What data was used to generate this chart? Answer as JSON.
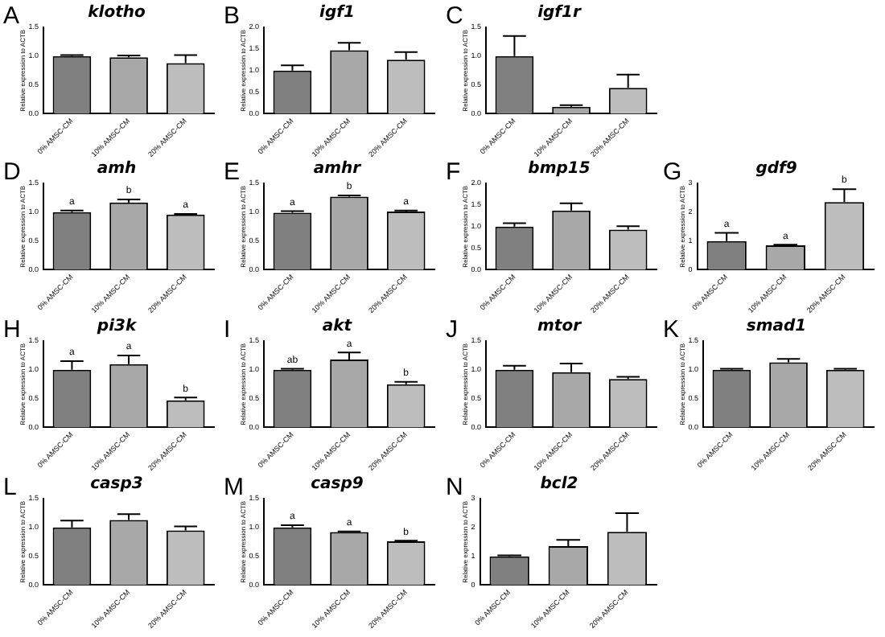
{
  "chart_data": [
    {
      "type": "bar",
      "title": "klotho",
      "annotations": [
        "A"
      ],
      "ylabel": "Relative expression to ACTB",
      "categories": [
        "0% AMSC-CM",
        "10% AMSC-CM",
        "20% AMSC-CM"
      ],
      "values": [
        1.0,
        0.98,
        0.88
      ],
      "errors": [
        0.02,
        0.03,
        0.14
      ],
      "colors": [
        "#808080",
        "#a8a8a8",
        "#bdbdbd"
      ],
      "ylim": [
        0,
        1.5
      ],
      "yticks": [
        {
          "value": 0,
          "label": "0.0"
        },
        {
          "value": 0.5,
          "label": "0.5"
        },
        {
          "value": 1,
          "label": "1.0"
        },
        {
          "value": 1.5,
          "label": "1.5"
        }
      ],
      "grid": false
    },
    {
      "type": "bar",
      "title": "igf1",
      "annotations": [
        "B"
      ],
      "ylabel": "Relative expression to ACTB",
      "categories": [
        "0% AMSC-CM",
        "10% AMSC-CM",
        "20% AMSC-CM"
      ],
      "values": [
        1.0,
        1.47,
        1.25
      ],
      "errors": [
        0.12,
        0.17,
        0.18
      ],
      "colors": [
        "#808080",
        "#a8a8a8",
        "#bdbdbd"
      ],
      "ylim": [
        0,
        2
      ],
      "yticks": [
        {
          "value": 0,
          "label": "0.0"
        },
        {
          "value": 0.5,
          "label": "0.5"
        },
        {
          "value": 1,
          "label": "1.0"
        },
        {
          "value": 1.5,
          "label": "1.5"
        },
        {
          "value": 2,
          "label": "2.0"
        }
      ],
      "grid": false
    },
    {
      "type": "bar",
      "title": "igf1r",
      "annotations": [
        "C"
      ],
      "ylabel": "Relative expression to ACTB",
      "categories": [
        "0% AMSC-CM",
        "10% AMSC-CM",
        "20% AMSC-CM"
      ],
      "values": [
        1.0,
        0.12,
        0.45
      ],
      "errors": [
        0.35,
        0.03,
        0.23
      ],
      "colors": [
        "#808080",
        "#a8a8a8",
        "#bdbdbd"
      ],
      "ylim": [
        0,
        1.5
      ],
      "yticks": [
        {
          "value": 0,
          "label": "0.0"
        },
        {
          "value": 0.5,
          "label": "0.5"
        },
        {
          "value": 1,
          "label": "1.0"
        },
        {
          "value": 1.5,
          "label": "1.5"
        }
      ],
      "grid": false
    },
    {
      "type": "bar",
      "title": "amh",
      "annotations": [
        "D",
        {
          "text": "a",
          "x": "0% AMSC-CM",
          "y": 1.03
        },
        {
          "text": "b",
          "x": "10% AMSC-CM",
          "y": 1.22
        },
        {
          "text": "a",
          "x": "20% AMSC-CM",
          "y": 0.97
        }
      ],
      "ylabel": "Relative expression to ACTB",
      "categories": [
        "0% AMSC-CM",
        "10% AMSC-CM",
        "20% AMSC-CM"
      ],
      "values": [
        1.0,
        1.17,
        0.96
      ],
      "errors": [
        0.03,
        0.05,
        0.01
      ],
      "colors": [
        "#808080",
        "#a8a8a8",
        "#bdbdbd"
      ],
      "ylim": [
        0,
        1.5
      ],
      "yticks": [
        {
          "value": 0,
          "label": "0.0"
        },
        {
          "value": 0.5,
          "label": "0.5"
        },
        {
          "value": 1,
          "label": "1.0"
        },
        {
          "value": 1.5,
          "label": "1.5"
        }
      ],
      "grid": false
    },
    {
      "type": "bar",
      "title": "amhr",
      "annotations": [
        "E",
        {
          "text": "a",
          "x": "0% AMSC-CM",
          "y": 1.02
        },
        {
          "text": "b",
          "x": "10% AMSC-CM",
          "y": 1.29
        },
        {
          "text": "a",
          "x": "20% AMSC-CM",
          "y": 1.03
        }
      ],
      "ylabel": "Relative expression to ACTB",
      "categories": [
        "0% AMSC-CM",
        "10% AMSC-CM",
        "20% AMSC-CM"
      ],
      "values": [
        0.99,
        1.27,
        1.01
      ],
      "errors": [
        0.03,
        0.02,
        0.02
      ],
      "colors": [
        "#808080",
        "#a8a8a8",
        "#bdbdbd"
      ],
      "ylim": [
        0,
        1.5
      ],
      "yticks": [
        {
          "value": 0,
          "label": "0.0"
        },
        {
          "value": 0.5,
          "label": "0.5"
        },
        {
          "value": 1,
          "label": "1.0"
        },
        {
          "value": 1.5,
          "label": "1.5"
        }
      ],
      "grid": false
    },
    {
      "type": "bar",
      "title": "bmp15",
      "annotations": [
        "F"
      ],
      "ylabel": "Relative expression to ACTB",
      "categories": [
        "0% AMSC-CM",
        "10% AMSC-CM",
        "20% AMSC-CM"
      ],
      "values": [
        1.0,
        1.37,
        0.93
      ],
      "errors": [
        0.08,
        0.17,
        0.08
      ],
      "colors": [
        "#808080",
        "#a8a8a8",
        "#bdbdbd"
      ],
      "ylim": [
        0,
        2
      ],
      "yticks": [
        {
          "value": 0,
          "label": "0.0"
        },
        {
          "value": 0.5,
          "label": "0.5"
        },
        {
          "value": 1,
          "label": "1.0"
        },
        {
          "value": 1.5,
          "label": "1.5"
        },
        {
          "value": 2,
          "label": "2.0"
        }
      ],
      "grid": false
    },
    {
      "type": "bar",
      "title": "gdf9",
      "annotations": [
        "G",
        {
          "text": "a",
          "x": "0% AMSC-CM",
          "y": 1.28
        },
        {
          "text": "a",
          "x": "10% AMSC-CM",
          "y": 0.87
        },
        {
          "text": "b",
          "x": "20% AMSC-CM",
          "y": 2.8
        }
      ],
      "ylabel": "Relative expression to ACTB",
      "categories": [
        "0% AMSC-CM",
        "10% AMSC-CM",
        "20% AMSC-CM"
      ],
      "values": [
        1.0,
        0.85,
        2.35
      ],
      "errors": [
        0.28,
        0.02,
        0.45
      ],
      "colors": [
        "#808080",
        "#a8a8a8",
        "#bdbdbd"
      ],
      "ylim": [
        0,
        3
      ],
      "yticks": [
        0,
        1,
        2,
        3
      ],
      "grid": false
    },
    {
      "type": "bar",
      "title": "pi3k",
      "annotations": [
        "H",
        {
          "text": "a",
          "x": "0% AMSC-CM",
          "y": 1.15
        },
        {
          "text": "a",
          "x": "10% AMSC-CM",
          "y": 1.25
        },
        {
          "text": "b",
          "x": "20% AMSC-CM",
          "y": 0.52
        }
      ],
      "ylabel": "Relative expression to ACTB",
      "categories": [
        "0% AMSC-CM",
        "10% AMSC-CM",
        "20% AMSC-CM"
      ],
      "values": [
        1.0,
        1.1,
        0.47
      ],
      "errors": [
        0.15,
        0.15,
        0.05
      ],
      "colors": [
        "#808080",
        "#a8a8a8",
        "#bdbdbd"
      ],
      "ylim": [
        0,
        1.5
      ],
      "yticks": [
        {
          "value": 0,
          "label": "0.0"
        },
        {
          "value": 0.5,
          "label": "0.5"
        },
        {
          "value": 1,
          "label": "1.0"
        },
        {
          "value": 1.5,
          "label": "1.5"
        }
      ],
      "grid": false
    },
    {
      "type": "bar",
      "title": "akt",
      "annotations": [
        "I",
        {
          "text": "ab",
          "x": "0% AMSC-CM",
          "y": 1.02
        },
        {
          "text": "a",
          "x": "10% AMSC-CM",
          "y": 1.3
        },
        {
          "text": "b",
          "x": "20% AMSC-CM",
          "y": 0.79
        }
      ],
      "ylabel": "Relative expression to ACTB",
      "categories": [
        "0% AMSC-CM",
        "10% AMSC-CM",
        "20% AMSC-CM"
      ],
      "values": [
        1.0,
        1.18,
        0.75
      ],
      "errors": [
        0.02,
        0.12,
        0.04
      ],
      "colors": [
        "#808080",
        "#a8a8a8",
        "#bdbdbd"
      ],
      "ylim": [
        0,
        1.5
      ],
      "yticks": [
        {
          "value": 0,
          "label": "0.0"
        },
        {
          "value": 0.5,
          "label": "0.5"
        },
        {
          "value": 1,
          "label": "1.0"
        },
        {
          "value": 1.5,
          "label": "1.5"
        }
      ],
      "grid": false
    },
    {
      "type": "bar",
      "title": "mtor",
      "annotations": [
        "J"
      ],
      "ylabel": "Relative expression to ACTB",
      "categories": [
        "0% AMSC-CM",
        "10% AMSC-CM",
        "20% AMSC-CM"
      ],
      "values": [
        1.0,
        0.96,
        0.84
      ],
      "errors": [
        0.07,
        0.15,
        0.04
      ],
      "colors": [
        "#808080",
        "#a8a8a8",
        "#bdbdbd"
      ],
      "ylim": [
        0,
        1.5
      ],
      "yticks": [
        {
          "value": 0,
          "label": "0.0"
        },
        {
          "value": 0.5,
          "label": "0.5"
        },
        {
          "value": 1,
          "label": "1.0"
        },
        {
          "value": 1.5,
          "label": "1.5"
        }
      ],
      "grid": false
    },
    {
      "type": "bar",
      "title": "smad1",
      "annotations": [
        "K"
      ],
      "ylabel": "Relative expression to ACTB",
      "categories": [
        "0% AMSC-CM",
        "10% AMSC-CM",
        "20% AMSC-CM"
      ],
      "values": [
        1.0,
        1.13,
        1.0
      ],
      "errors": [
        0.02,
        0.06,
        0.02
      ],
      "colors": [
        "#808080",
        "#a8a8a8",
        "#bdbdbd"
      ],
      "ylim": [
        0,
        1.5
      ],
      "yticks": [
        {
          "value": 0,
          "label": "0.0"
        },
        {
          "value": 0.5,
          "label": "0.5"
        },
        {
          "value": 1,
          "label": "1.0"
        },
        {
          "value": 1.5,
          "label": "1.5"
        }
      ],
      "grid": false
    },
    {
      "type": "bar",
      "title": "casp3",
      "annotations": [
        "L"
      ],
      "ylabel": "Relative expression to ACTB",
      "categories": [
        "0% AMSC-CM",
        "10% AMSC-CM",
        "20% AMSC-CM"
      ],
      "values": [
        1.0,
        1.13,
        0.95
      ],
      "errors": [
        0.12,
        0.1,
        0.07
      ],
      "colors": [
        "#808080",
        "#a8a8a8",
        "#bdbdbd"
      ],
      "ylim": [
        0,
        1.5
      ],
      "yticks": [
        {
          "value": 0,
          "label": "0.0"
        },
        {
          "value": 0.5,
          "label": "0.5"
        },
        {
          "value": 1,
          "label": "1.0"
        },
        {
          "value": 1.5,
          "label": "1.5"
        }
      ],
      "grid": false
    },
    {
      "type": "bar",
      "title": "casp9",
      "annotations": [
        "M",
        {
          "text": "a",
          "x": "0% AMSC-CM",
          "y": 1.04
        },
        {
          "text": "a",
          "x": "10% AMSC-CM",
          "y": 0.93
        },
        {
          "text": "b",
          "x": "20% AMSC-CM",
          "y": 0.77
        }
      ],
      "ylabel": "Relative expression to ACTB",
      "categories": [
        "0% AMSC-CM",
        "10% AMSC-CM",
        "20% AMSC-CM"
      ],
      "values": [
        1.0,
        0.92,
        0.76
      ],
      "errors": [
        0.04,
        0.01,
        0.01
      ],
      "colors": [
        "#808080",
        "#a8a8a8",
        "#bdbdbd"
      ],
      "ylim": [
        0,
        1.5
      ],
      "yticks": [
        {
          "value": 0,
          "label": "0.0"
        },
        {
          "value": 0.5,
          "label": "0.5"
        },
        {
          "value": 1,
          "label": "1.0"
        },
        {
          "value": 1.5,
          "label": "1.5"
        }
      ],
      "grid": false
    },
    {
      "type": "bar",
      "title": "bcl2",
      "annotations": [
        "N"
      ],
      "ylabel": "Relative expression to ACTB",
      "categories": [
        "0% AMSC-CM",
        "10% AMSC-CM",
        "20% AMSC-CM"
      ],
      "values": [
        1.0,
        1.35,
        1.85
      ],
      "errors": [
        0.03,
        0.22,
        0.65
      ],
      "colors": [
        "#808080",
        "#a8a8a8",
        "#bdbdbd"
      ],
      "ylim": [
        0,
        3
      ],
      "yticks": [
        0,
        1,
        2,
        3
      ],
      "grid": false
    }
  ]
}
